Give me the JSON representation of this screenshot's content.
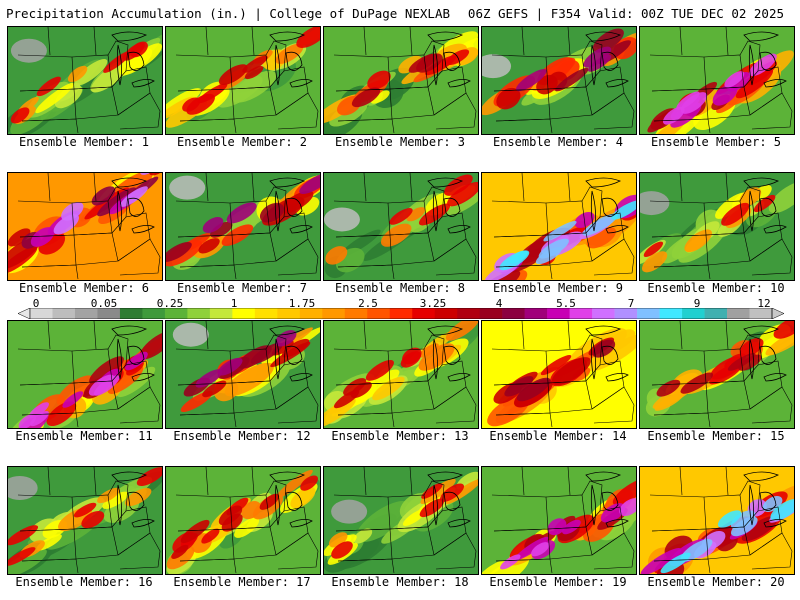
{
  "header": {
    "left_title": "Precipitation Accumulation (in.) | College of DuPage NEXLAB",
    "right_title": "06Z GEFS | F354 Valid: 00Z TUE DEC 02 2025"
  },
  "caption_prefix": "Ensemble Member: ",
  "members": [
    {
      "id": "1",
      "captionText": "Ensemble Member: 1",
      "pattern": "low",
      "seed": 1
    },
    {
      "id": "2",
      "captionText": "Ensemble Member: 2",
      "pattern": "moderate",
      "seed": 2
    },
    {
      "id": "3",
      "captionText": "Ensemble Member: 3",
      "pattern": "band",
      "seed": 3
    },
    {
      "id": "4",
      "captionText": "Ensemble Member: 4",
      "pattern": "band-strong",
      "seed": 4
    },
    {
      "id": "5",
      "captionText": "Ensemble Member: 5",
      "pattern": "south-heavy",
      "seed": 5
    },
    {
      "id": "6",
      "captionText": "Ensemble Member: 6",
      "pattern": "west-heavy",
      "seed": 6
    },
    {
      "id": "7",
      "captionText": "Ensemble Member: 7",
      "pattern": "band-strong",
      "seed": 7
    },
    {
      "id": "8",
      "captionText": "Ensemble Member: 8",
      "pattern": "dry-west",
      "seed": 8
    },
    {
      "id": "9",
      "captionText": "Ensemble Member: 9",
      "pattern": "south-extreme",
      "seed": 9
    },
    {
      "id": "10",
      "captionText": "Ensemble Member: 10",
      "pattern": "low",
      "seed": 10
    },
    {
      "id": "11",
      "captionText": "Ensemble Member: 11",
      "pattern": "south-heavy",
      "seed": 11
    },
    {
      "id": "12",
      "captionText": "Ensemble Member: 12",
      "pattern": "band-strong",
      "seed": 12
    },
    {
      "id": "13",
      "captionText": "Ensemble Member: 13",
      "pattern": "moderate",
      "seed": 13
    },
    {
      "id": "14",
      "captionText": "Ensemble Member: 14",
      "pattern": "wet",
      "seed": 14
    },
    {
      "id": "15",
      "captionText": "Ensemble Member: 15",
      "pattern": "band",
      "seed": 15
    },
    {
      "id": "16",
      "captionText": "Ensemble Member: 16",
      "pattern": "low",
      "seed": 16
    },
    {
      "id": "17",
      "captionText": "Ensemble Member: 17",
      "pattern": "moderate",
      "seed": 17
    },
    {
      "id": "18",
      "captionText": "Ensemble Member: 18",
      "pattern": "low",
      "seed": 18
    },
    {
      "id": "19",
      "captionText": "Ensemble Member: 19",
      "pattern": "south-heavy",
      "seed": 19
    },
    {
      "id": "20",
      "captionText": "Ensemble Member: 20",
      "pattern": "south-extreme",
      "seed": 20
    }
  ],
  "legend": {
    "units": "in.",
    "labels": [
      "0",
      "0.05",
      "0.25",
      "1",
      "1.75",
      "2.5",
      "3.25",
      "4",
      "5.5",
      "7",
      "9",
      "12"
    ],
    "label_values": [
      0,
      0.05,
      0.25,
      1,
      1.75,
      2.5,
      3.25,
      4,
      5.5,
      7,
      9,
      12
    ],
    "colors": [
      "#d8d8d8",
      "#bdbdbd",
      "#a3a3a3",
      "#8a8a8a",
      "#2e7d32",
      "#3f9a3c",
      "#5cb338",
      "#8fd13a",
      "#c4e83a",
      "#ffff00",
      "#ffe000",
      "#ffc800",
      "#ffb000",
      "#ff9800",
      "#ff7a00",
      "#ff5500",
      "#ff2a00",
      "#e60000",
      "#cc0000",
      "#b00010",
      "#99001f",
      "#8c0040",
      "#a0007a",
      "#c800b4",
      "#e040e8",
      "#d070ff",
      "#b090ff",
      "#80c0ff",
      "#40e8ff",
      "#20d0d0",
      "#40b0b0",
      "#a0a0a0",
      "#c0c0c0"
    ]
  }
}
